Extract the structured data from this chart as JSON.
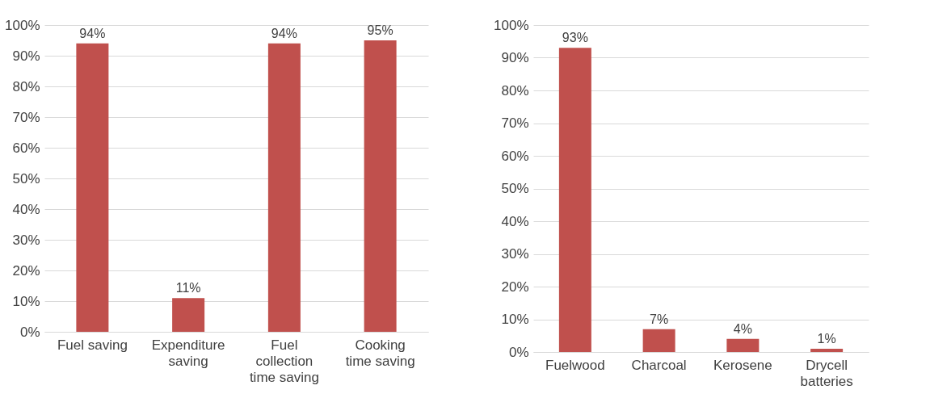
{
  "chart_data": [
    {
      "type": "bar",
      "categories": [
        "Fuel saving",
        "Expenditure saving",
        "Fuel collection time saving",
        "Cooking time saving"
      ],
      "values": [
        94,
        11,
        94,
        95
      ],
      "color": "#c0504d",
      "value_labels": [
        "94%",
        "11%",
        "94%",
        "95%"
      ],
      "ylim": [
        0,
        100
      ],
      "yticks": [
        {
          "value": 0,
          "label": "0%"
        },
        {
          "value": 10,
          "label": "10%"
        },
        {
          "value": 20,
          "label": "20%"
        },
        {
          "value": 30,
          "label": "30%"
        },
        {
          "value": 40,
          "label": "40%"
        },
        {
          "value": 50,
          "label": "50%"
        },
        {
          "value": 60,
          "label": "60%"
        },
        {
          "value": 70,
          "label": "70%"
        },
        {
          "value": 80,
          "label": "80%"
        },
        {
          "value": 90,
          "label": "90%"
        },
        {
          "value": 100,
          "label": "100%"
        }
      ],
      "grid": "y"
    },
    {
      "type": "bar",
      "categories": [
        "Fuelwood",
        "Charcoal",
        "Kerosene",
        "Drycell batteries"
      ],
      "values": [
        93,
        7,
        4,
        1
      ],
      "color": "#c0504d",
      "value_labels": [
        "93%",
        "7%",
        "4%",
        "1%"
      ],
      "ylim": [
        0,
        100
      ],
      "yticks": [
        {
          "value": 0,
          "label": "0%"
        },
        {
          "value": 10,
          "label": "10%"
        },
        {
          "value": 20,
          "label": "20%"
        },
        {
          "value": 30,
          "label": "30%"
        },
        {
          "value": 40,
          "label": "40%"
        },
        {
          "value": 50,
          "label": "50%"
        },
        {
          "value": 60,
          "label": "60%"
        },
        {
          "value": 70,
          "label": "70%"
        },
        {
          "value": 80,
          "label": "80%"
        },
        {
          "value": 90,
          "label": "90%"
        },
        {
          "value": 100,
          "label": "100%"
        }
      ],
      "grid": "y"
    }
  ]
}
